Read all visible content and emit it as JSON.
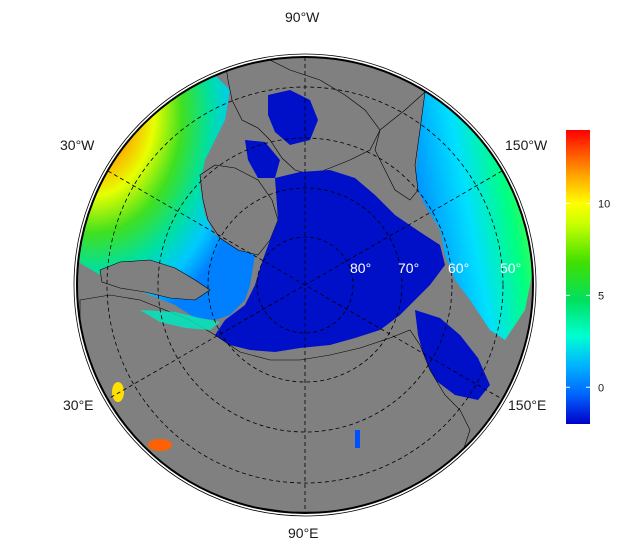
{
  "map": {
    "projection": "north polar stereographic",
    "ocean_field_colormap": "rainbow",
    "land_color": "#808080",
    "sea_ice_region_color": "#0010c8",
    "graticule_style": "dashed black",
    "longitude_labels": {
      "top": "90°W",
      "bottom": "90°E",
      "upper_left": "30°W",
      "upper_right": "150°W",
      "lower_left": "30°E",
      "lower_right": "150°E"
    },
    "latitude_labels": [
      "80°",
      "70°",
      "60°",
      "50°"
    ]
  },
  "colorbar": {
    "range": [
      -2,
      14
    ],
    "ticks": [
      "0",
      "5",
      "10"
    ],
    "tick_values": [
      0,
      5,
      10
    ],
    "colors": [
      "#0000c8",
      "#0064ff",
      "#00d8ff",
      "#00ff80",
      "#00d000",
      "#a0ff00",
      "#ffff00",
      "#ffa000",
      "#ff5000",
      "#ff0000"
    ]
  }
}
